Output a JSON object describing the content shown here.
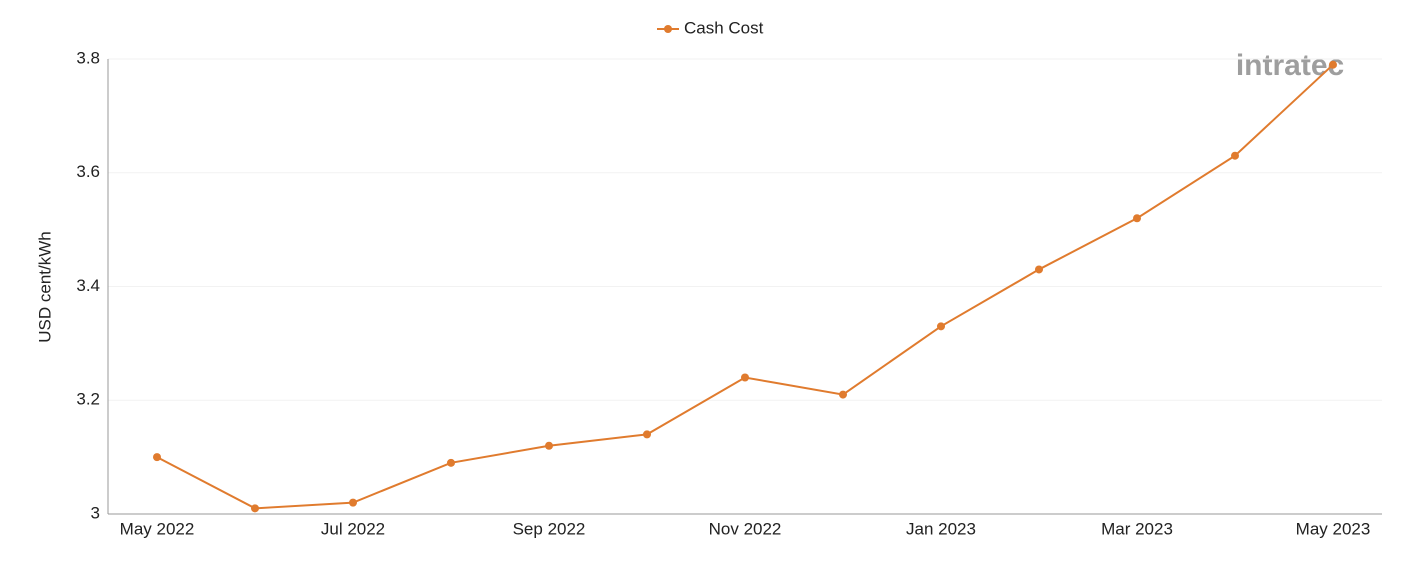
{
  "chart_data": {
    "type": "line",
    "y_label": "USD cent/kWh",
    "watermark": "intratec",
    "categories": [
      "May 2022",
      null,
      "Jul 2022",
      null,
      "Sep 2022",
      null,
      "Nov 2022",
      null,
      "Jan 2023",
      null,
      "Mar 2023",
      null,
      "May 2023"
    ],
    "series": [
      {
        "name": "Cash Cost",
        "color": "#e07b2e",
        "values": [
          3.1,
          3.01,
          3.02,
          3.09,
          3.12,
          3.14,
          3.24,
          3.21,
          3.33,
          3.43,
          3.52,
          3.63,
          3.79
        ]
      }
    ],
    "ylim": [
      3,
      3.8
    ],
    "yticks": [
      3,
      3.2,
      3.4,
      3.6,
      3.8
    ],
    "grid": true,
    "legend": "top"
  }
}
